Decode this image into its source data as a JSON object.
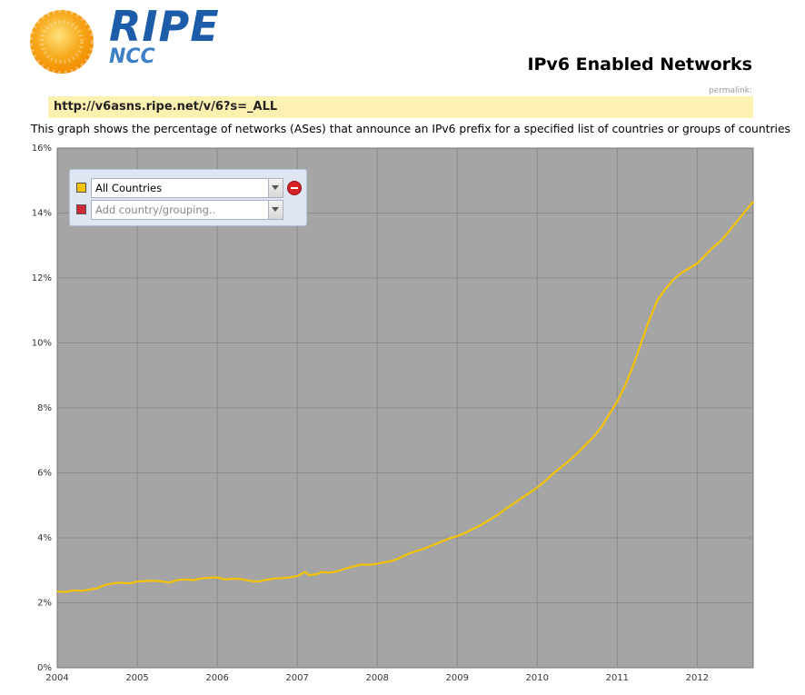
{
  "header": {
    "logo_title": "RIPE",
    "logo_subtitle": "NCC",
    "page_title": "IPv6 Enabled Networks",
    "permalink_label": "permalink:",
    "url": "http://v6asns.ripe.net/v/6?s=_ALL",
    "description": "This graph shows the percentage of networks (ASes) that announce an IPv6 prefix for a specified list of countries or groups of countries"
  },
  "legend": {
    "rows": [
      {
        "label": "All Countries",
        "color": "#f4c300"
      },
      {
        "placeholder": "Add country/grouping..",
        "color": "#cc2a36"
      }
    ]
  },
  "colors": {
    "plot_background": "#a5a5a5",
    "gridline": "#8a8a8a",
    "series_line": "#f4c300",
    "logo_sun": "#f6a81a",
    "logo_text": "#1c5ca8"
  },
  "chart_data": {
    "type": "line",
    "title": "",
    "xlabel": "",
    "ylabel": "",
    "ylim": [
      0,
      16
    ],
    "xlim": [
      2004,
      2012.7
    ],
    "y_ticks": [
      "0%",
      "2%",
      "4%",
      "6%",
      "8%",
      "10%",
      "12%",
      "14%",
      "16%"
    ],
    "x_ticks": [
      "2004",
      "2005",
      "2006",
      "2007",
      "2008",
      "2009",
      "2010",
      "2011",
      "2012"
    ],
    "grid": true,
    "series": [
      {
        "name": "All Countries",
        "x": [
          2004.0,
          2004.1,
          2004.2,
          2004.3,
          2004.4,
          2004.5,
          2004.6,
          2004.7,
          2004.8,
          2004.9,
          2005.0,
          2005.1,
          2005.2,
          2005.3,
          2005.4,
          2005.5,
          2005.6,
          2005.7,
          2005.8,
          2005.9,
          2006.0,
          2006.1,
          2006.2,
          2006.3,
          2006.4,
          2006.5,
          2006.6,
          2006.7,
          2006.8,
          2006.9,
          2007.0,
          2007.1,
          2007.15,
          2007.25,
          2007.3,
          2007.4,
          2007.5,
          2007.6,
          2007.7,
          2007.8,
          2007.9,
          2008.0,
          2008.1,
          2008.2,
          2008.3,
          2008.4,
          2008.5,
          2008.6,
          2008.7,
          2008.8,
          2008.9,
          2009.0,
          2009.1,
          2009.2,
          2009.3,
          2009.4,
          2009.5,
          2009.6,
          2009.7,
          2009.8,
          2009.9,
          2010.0,
          2010.1,
          2010.2,
          2010.3,
          2010.4,
          2010.5,
          2010.6,
          2010.7,
          2010.8,
          2010.9,
          2011.0,
          2011.1,
          2011.2,
          2011.3,
          2011.4,
          2011.5,
          2011.6,
          2011.7,
          2011.8,
          2011.9,
          2012.0,
          2012.1,
          2012.2,
          2012.3,
          2012.4,
          2012.5,
          2012.6,
          2012.7
        ],
        "y": [
          2.35,
          2.33,
          2.38,
          2.37,
          2.4,
          2.45,
          2.55,
          2.6,
          2.62,
          2.6,
          2.65,
          2.67,
          2.68,
          2.66,
          2.62,
          2.7,
          2.72,
          2.7,
          2.75,
          2.77,
          2.78,
          2.72,
          2.74,
          2.73,
          2.68,
          2.65,
          2.7,
          2.74,
          2.76,
          2.78,
          2.82,
          2.95,
          2.85,
          2.88,
          2.95,
          2.93,
          2.97,
          3.05,
          3.12,
          3.18,
          3.17,
          3.2,
          3.25,
          3.3,
          3.4,
          3.52,
          3.6,
          3.68,
          3.78,
          3.88,
          3.98,
          4.05,
          4.15,
          4.28,
          4.4,
          4.55,
          4.7,
          4.88,
          5.05,
          5.22,
          5.38,
          5.55,
          5.75,
          5.98,
          6.18,
          6.38,
          6.6,
          6.85,
          7.1,
          7.4,
          7.8,
          8.2,
          8.7,
          9.3,
          10.0,
          10.7,
          11.3,
          11.65,
          11.95,
          12.15,
          12.3,
          12.45,
          12.7,
          12.95,
          13.15,
          13.45,
          13.75,
          14.05,
          14.35
        ]
      }
    ]
  }
}
